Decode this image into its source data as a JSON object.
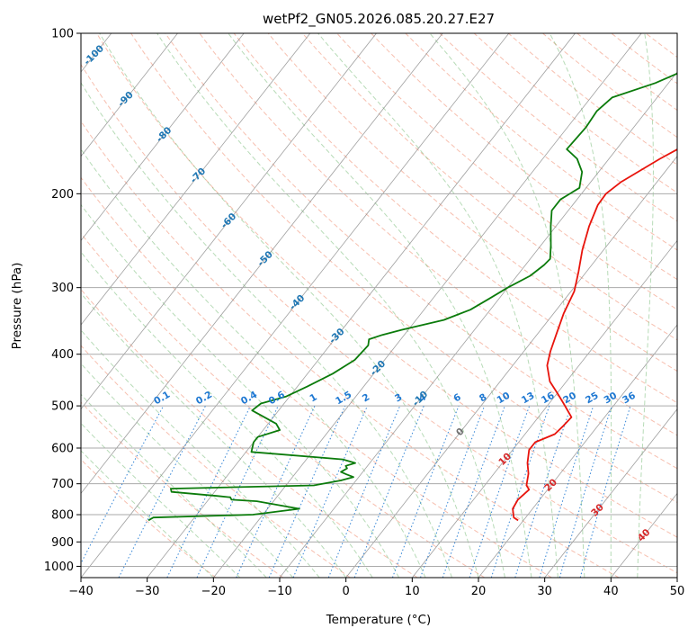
{
  "chart_data": {
    "type": "line",
    "subtype": "skew-t log-p diagram",
    "title": "wetPf2_GN05.2026.085.20.27.E27",
    "xlabel": "Temperature (°C)",
    "ylabel": "Pressure (hPa)",
    "xlim": [
      -40,
      50
    ],
    "ylim": [
      1050,
      100
    ],
    "y_scale": "log",
    "grid": true,
    "x_ticks": [
      -40,
      -30,
      -20,
      -10,
      0,
      10,
      20,
      30,
      40,
      50
    ],
    "x_tick_labels": [
      "−40",
      "−30",
      "−20",
      "−10",
      "0",
      "10",
      "20",
      "30",
      "40",
      "50"
    ],
    "y_ticks": [
      1000,
      900,
      800,
      700,
      600,
      500,
      400,
      300,
      200,
      100
    ],
    "y_tick_labels": [
      "1000",
      "900",
      "800",
      "700",
      "600",
      "500",
      "400",
      "300",
      "200",
      "100"
    ],
    "series": [
      {
        "color": "#e8140c",
        "points": [
          [
            19.2,
            820
          ],
          [
            18.2,
            810
          ],
          [
            17.0,
            780
          ],
          [
            16.7,
            750
          ],
          [
            17.2,
            718
          ],
          [
            16.3,
            705
          ],
          [
            15.2,
            670
          ],
          [
            13.8,
            640
          ],
          [
            12.5,
            605
          ],
          [
            12.5,
            585
          ],
          [
            14.5,
            565
          ],
          [
            14.8,
            545
          ],
          [
            15.0,
            525
          ],
          [
            12.2,
            495
          ],
          [
            10.2,
            475
          ],
          [
            7.5,
            450
          ],
          [
            5.2,
            420
          ],
          [
            4.0,
            395
          ],
          [
            2.8,
            365
          ],
          [
            1.5,
            335
          ],
          [
            0.5,
            305
          ],
          [
            -1.2,
            280
          ],
          [
            -3.2,
            255
          ],
          [
            -5.0,
            230
          ],
          [
            -6.2,
            210
          ],
          [
            -6.3,
            200
          ],
          [
            -5.4,
            190
          ],
          [
            -2.3,
            172
          ],
          [
            1.5,
            155
          ],
          [
            5.5,
            140
          ],
          [
            8.2,
            128
          ],
          [
            10.0,
            118
          ],
          [
            12.0,
            110
          ],
          [
            15.0,
            100
          ]
        ]
      },
      {
        "color": "#0b7b0b",
        "points": [
          [
            -36.6,
            820
          ],
          [
            -36.2,
            810
          ],
          [
            -21.5,
            800
          ],
          [
            -15.2,
            780
          ],
          [
            -22.5,
            755
          ],
          [
            -26.5,
            750
          ],
          [
            -27.0,
            742
          ],
          [
            -29.0,
            738
          ],
          [
            -36.5,
            725
          ],
          [
            -37.0,
            715
          ],
          [
            -15.8,
            705
          ],
          [
            -12.3,
            690
          ],
          [
            -10.8,
            680
          ],
          [
            -12.2,
            672
          ],
          [
            -13.3,
            665
          ],
          [
            -12.8,
            655
          ],
          [
            -13.3,
            648
          ],
          [
            -12.2,
            640
          ],
          [
            -14.5,
            630
          ],
          [
            -29.2,
            610
          ],
          [
            -30.0,
            585
          ],
          [
            -30.0,
            572
          ],
          [
            -27.5,
            555
          ],
          [
            -28.8,
            540
          ],
          [
            -34.0,
            510
          ],
          [
            -33.5,
            495
          ],
          [
            -30.5,
            480
          ],
          [
            -28.5,
            460
          ],
          [
            -26.2,
            435
          ],
          [
            -24.5,
            410
          ],
          [
            -24.2,
            385
          ],
          [
            -24.8,
            375
          ],
          [
            -23.3,
            368
          ],
          [
            -21.0,
            360
          ],
          [
            -15.8,
            345
          ],
          [
            -13.0,
            330
          ],
          [
            -11.5,
            315
          ],
          [
            -10.0,
            300
          ],
          [
            -8.0,
            285
          ],
          [
            -7.2,
            272
          ],
          [
            -7.0,
            265
          ],
          [
            -8.5,
            250
          ],
          [
            -10.8,
            230
          ],
          [
            -12.5,
            215
          ],
          [
            -12.5,
            205
          ],
          [
            -11.0,
            195
          ],
          [
            -12.5,
            182
          ],
          [
            -14.8,
            172
          ],
          [
            -17.5,
            165
          ],
          [
            -17.2,
            150
          ],
          [
            -17.5,
            140
          ],
          [
            -16.8,
            132
          ],
          [
            -12.0,
            124
          ],
          [
            -8.0,
            115
          ],
          [
            -5.5,
            108
          ],
          [
            -4.0,
            102
          ],
          [
            -3.5,
            100
          ]
        ]
      }
    ],
    "background_lines": {
      "dry_adiabats_color": "#f08060",
      "moist_adiabats_color": "#60b060",
      "isotherms_color": "#808080",
      "mixing_ratio_color": "#1e78d2",
      "annotation_red": "#d62728",
      "annotation_blue": "#1f77b4"
    },
    "mixing_ratio_labels": [
      "0.1",
      "0.2",
      "0.4",
      "0.6",
      "1",
      "1.5",
      "2",
      "3",
      "4",
      "6",
      "8",
      "10",
      "13",
      "16",
      "20",
      "25",
      "30",
      "36"
    ],
    "temperature_annotations": [
      "-100",
      "-90",
      "-80",
      "-70",
      "-60",
      "-50",
      "-40",
      "-30",
      "-20",
      "-10",
      "0",
      "10",
      "20",
      "30",
      "40"
    ]
  }
}
